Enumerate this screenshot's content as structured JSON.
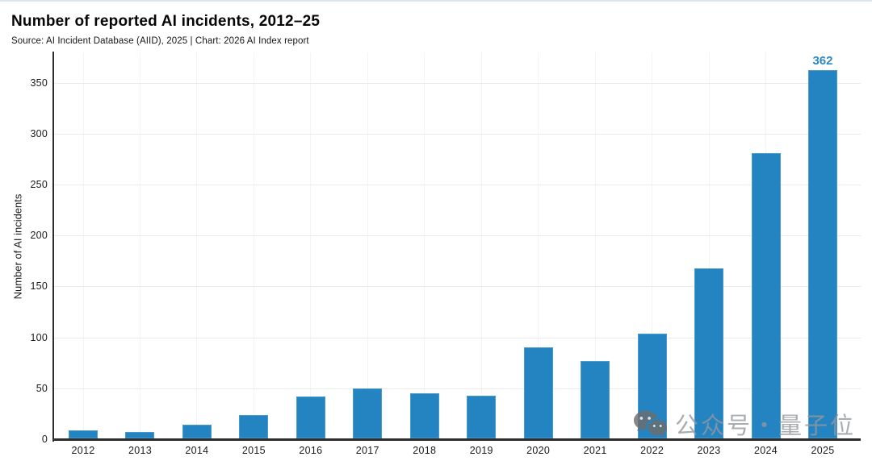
{
  "header": {
    "title": "Number of reported AI incidents, 2012–25",
    "source": "Source: AI Incident Database (AIID), 2025 | Chart: 2026 AI Index report"
  },
  "watermark": {
    "icon": "wechat-icon",
    "text": "公众号・量子位"
  },
  "chart_data": {
    "type": "bar",
    "title": "Number of reported AI incidents, 2012–25",
    "source": "Source: AI Incident Database (AIID), 2025 | Chart: 2026 AI Index report",
    "categories": [
      "2012",
      "2013",
      "2014",
      "2015",
      "2016",
      "2017",
      "2018",
      "2019",
      "2020",
      "2021",
      "2022",
      "2023",
      "2024",
      "2025"
    ],
    "values": [
      9,
      7,
      14,
      24,
      42,
      50,
      45,
      43,
      90,
      77,
      104,
      168,
      281,
      362
    ],
    "annotations": [
      {
        "category": "2025",
        "text": "362"
      }
    ],
    "xlabel": "",
    "ylabel": "Number of AI incidents",
    "ylim": [
      0,
      375
    ],
    "yticks": [
      0,
      50,
      100,
      150,
      200,
      250,
      300,
      350
    ],
    "grid": true,
    "legend": "none",
    "bar_color": "#2484c1",
    "annotation_color": "#2e87c4",
    "axis_color": "#2d2d2d"
  }
}
